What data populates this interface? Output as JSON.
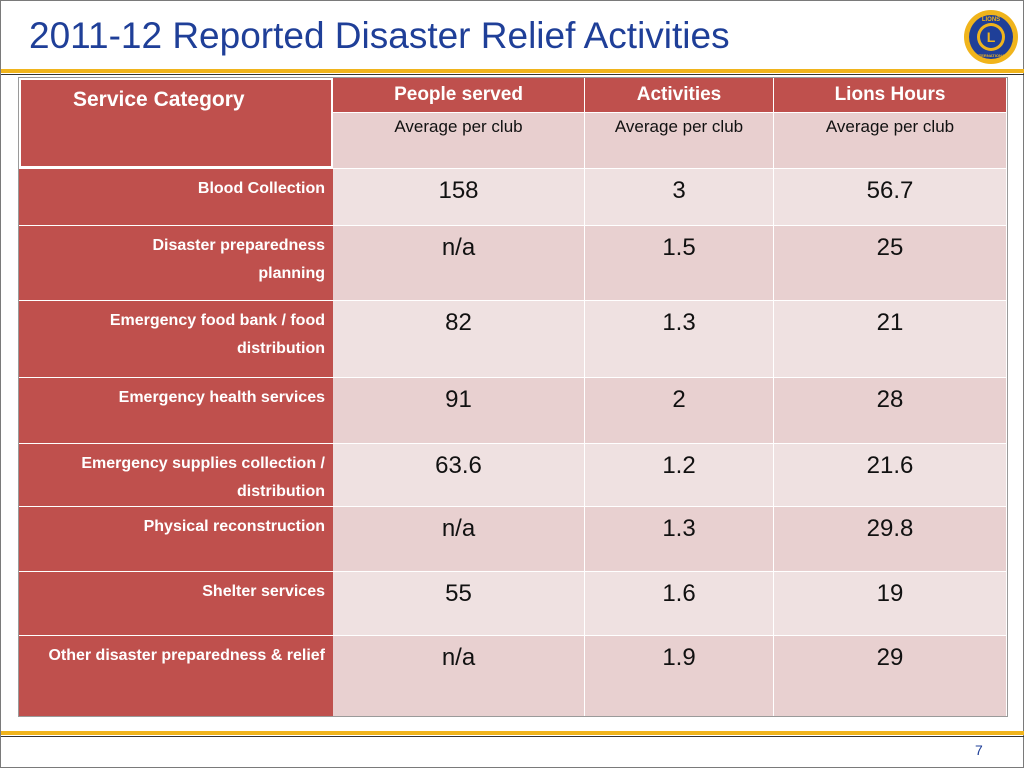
{
  "slide": {
    "title": "2011-12 Reported Disaster Relief Activities",
    "page_number": "7",
    "logo": {
      "icon": "lions-international-logo-icon",
      "text_top": "LIONS",
      "text_center": "L",
      "text_bottom": "INTERNATIONAL"
    },
    "colors": {
      "title": "#1f3f98",
      "accent": "#f0b41c",
      "header_fill": "#bf504d",
      "row_fill_light": "#efe1e1",
      "row_fill_dark": "#e8d0d0"
    }
  },
  "table": {
    "category_header": "Service Category",
    "columns": [
      {
        "label": "People served",
        "sub": "Average per club"
      },
      {
        "label": "Activities",
        "sub": "Average per club"
      },
      {
        "label": "Lions Hours",
        "sub": "Average per club"
      }
    ],
    "rows": [
      {
        "label": "Blood Collection",
        "values": [
          "158",
          "3",
          "56.7"
        ]
      },
      {
        "label": "Disaster preparedness planning",
        "values": [
          "n/a",
          "1.5",
          "25"
        ]
      },
      {
        "label": "Emergency food bank / food distribution",
        "values": [
          "82",
          "1.3",
          "21"
        ]
      },
      {
        "label": "Emergency health services",
        "values": [
          "91",
          "2",
          "28"
        ]
      },
      {
        "label": "Emergency supplies collection / distribution",
        "values": [
          "63.6",
          "1.2",
          "21.6"
        ]
      },
      {
        "label": "Physical reconstruction",
        "values": [
          "n/a",
          "1.3",
          "29.8"
        ]
      },
      {
        "label": "Shelter services",
        "values": [
          "55",
          "1.6",
          "19"
        ]
      },
      {
        "label": "Other disaster preparedness & relief",
        "values": [
          "n/a",
          "1.9",
          "29"
        ]
      }
    ]
  }
}
